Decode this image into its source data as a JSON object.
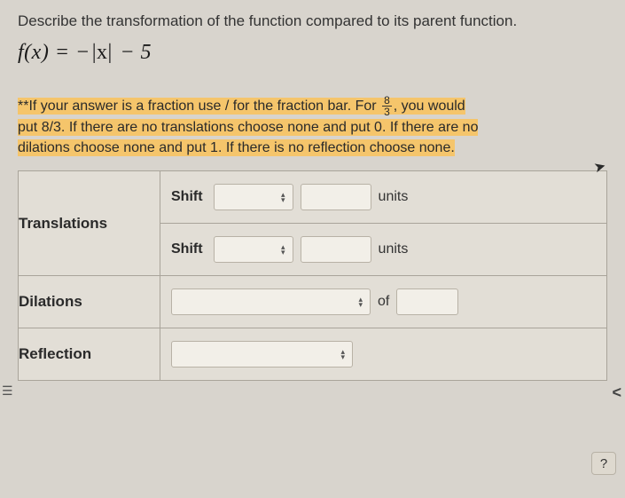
{
  "prompt": "Describe the transformation of the function compared to its parent function.",
  "equation": {
    "lhs": "f(x)",
    "rhs_prefix": " = −",
    "abs": "|x|",
    "rhs_suffix": " − 5"
  },
  "instructions": {
    "line1a": "**If your answer is a fraction use / for the fraction bar. For ",
    "frac_num": "8",
    "frac_den": "3",
    "line1b": ", you would",
    "line2": "put 8/3. If there are no translations choose none and put 0.  If there are no",
    "line3": "dilations choose none and put 1.  If there is no reflection choose none."
  },
  "table": {
    "translations_label": "Translations",
    "dilations_label": "Dilations",
    "reflection_label": "Reflection",
    "shift_label": "Shift",
    "units_label": "units",
    "of_label": "of"
  },
  "widths": {
    "select_small": "90px",
    "select_med": "225px",
    "select_ref": "205px",
    "input_small": "80px",
    "input_tiny": "70px"
  },
  "help": "?",
  "colors": {
    "highlight": "#f5c56b",
    "page_bg": "#d8d4cd",
    "cell_bg": "#e2ded6",
    "border": "#a9a49a"
  }
}
